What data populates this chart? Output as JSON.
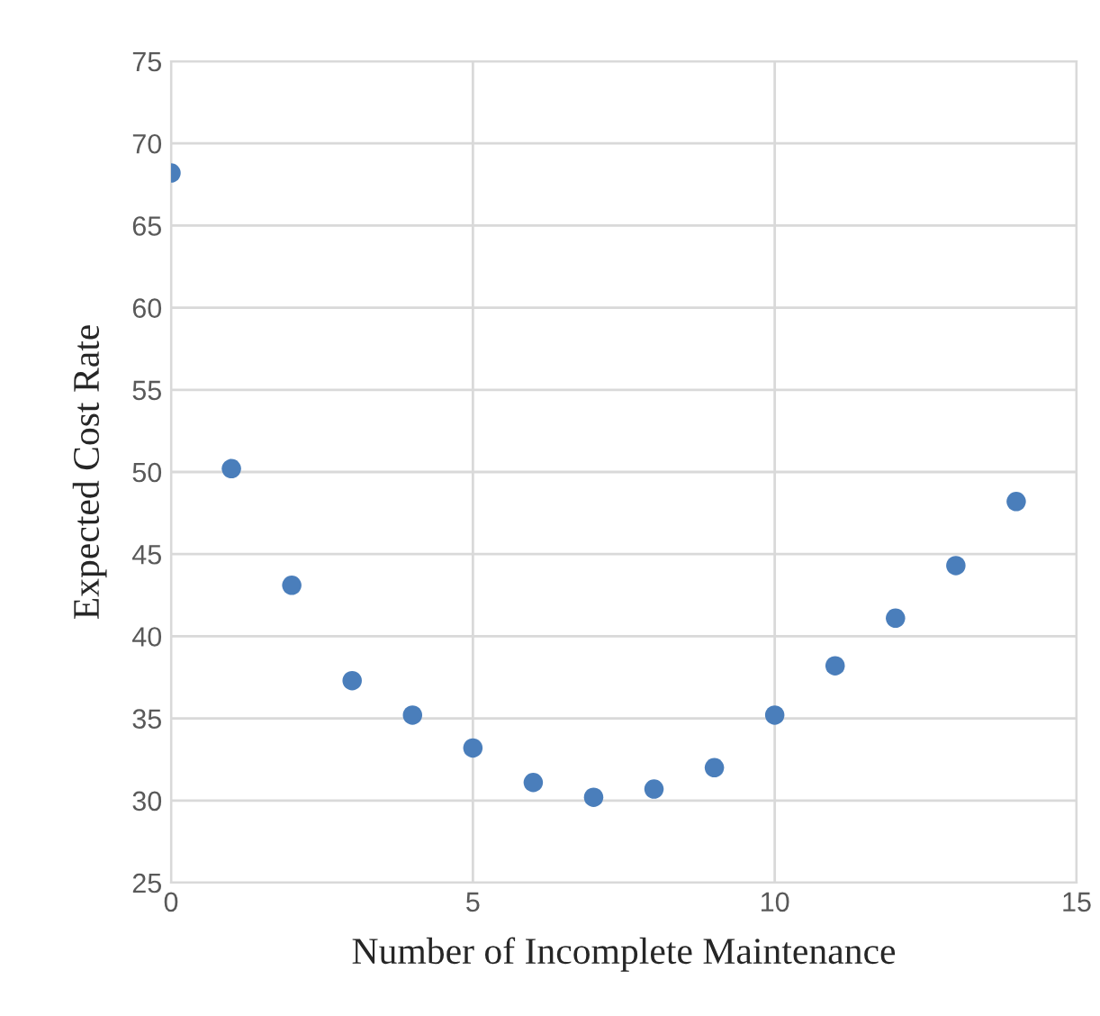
{
  "chart_data": {
    "type": "scatter",
    "xlabel": "Number of Incomplete Maintenance",
    "ylabel": "Expected Cost Rate",
    "x": [
      0,
      1,
      2,
      3,
      4,
      5,
      6,
      7,
      8,
      9,
      10,
      11,
      12,
      13,
      14
    ],
    "series": [
      {
        "color": "#4a7ebb",
        "values": [
          68.2,
          50.2,
          43.1,
          37.3,
          35.2,
          33.2,
          31.1,
          30.2,
          30.7,
          32.0,
          35.2,
          38.2,
          41.1,
          44.3,
          48.2
        ]
      }
    ],
    "xlim": [
      0,
      15
    ],
    "xticks": [
      0,
      5,
      10,
      15
    ],
    "ylim": [
      25,
      75
    ],
    "yticks": [
      25,
      30,
      35,
      40,
      45,
      50,
      55,
      60,
      65,
      70,
      75
    ],
    "grid": true,
    "marker": "circle"
  }
}
